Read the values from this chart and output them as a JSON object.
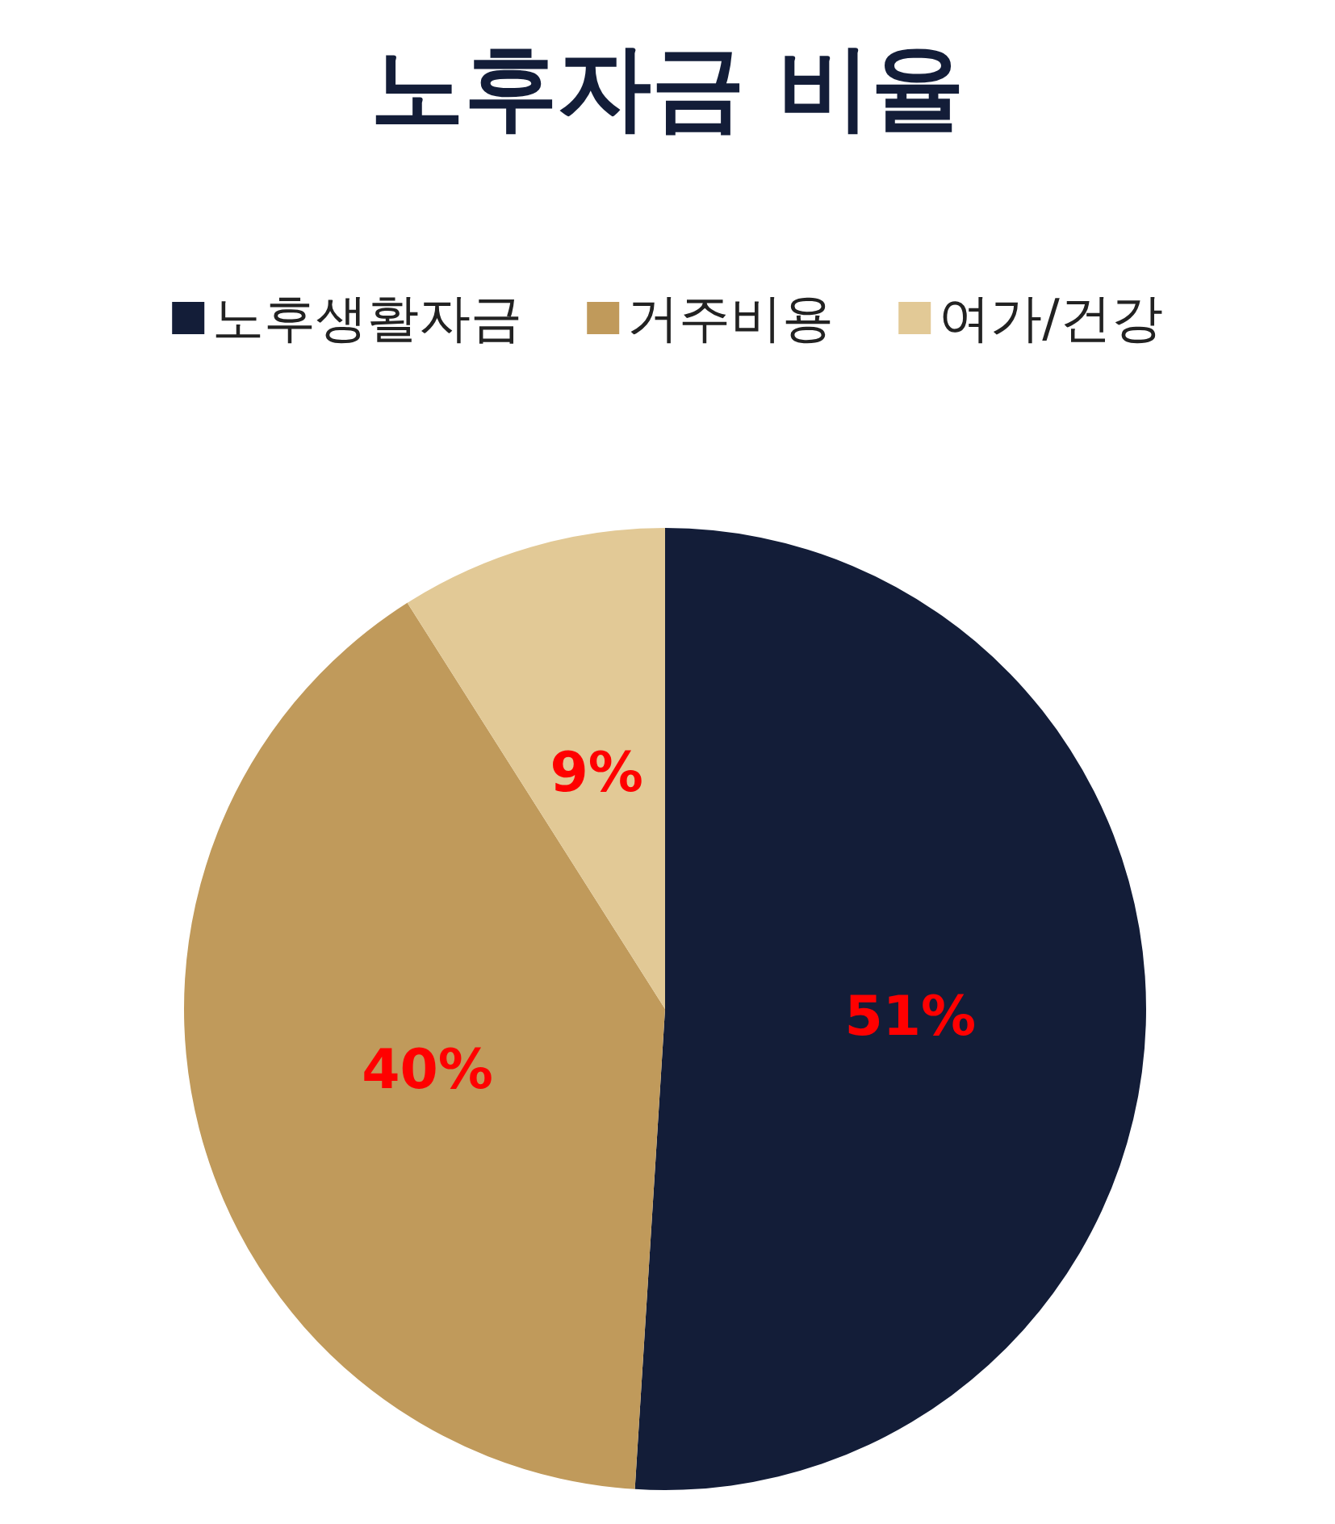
{
  "chart_data": {
    "type": "pie",
    "title": "노후자금 비율",
    "categories": [
      "노후생활자금",
      "거주비용",
      "여가/건강"
    ],
    "values": [
      51,
      40,
      9
    ],
    "colors": [
      "#131d38",
      "#c09a5b",
      "#e2c996"
    ],
    "value_labels": [
      "51%",
      "40%",
      "9%"
    ],
    "legend": "top"
  }
}
